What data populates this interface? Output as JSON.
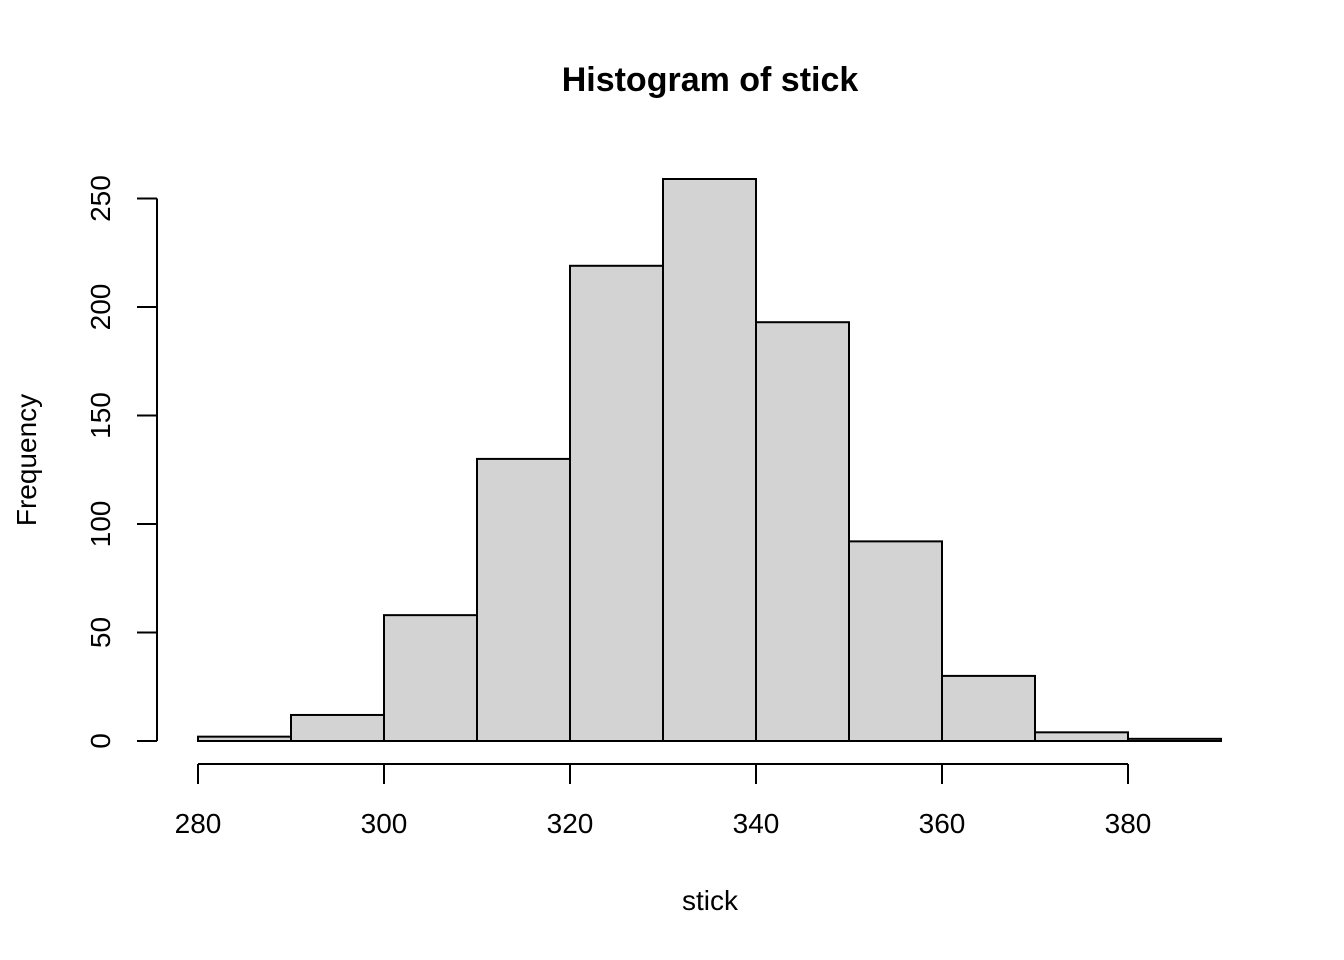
{
  "chart_data": {
    "type": "bar",
    "title": "Histogram of stick",
    "xlabel": "stick",
    "ylabel": "Frequency",
    "bins": [
      {
        "start": 280,
        "end": 290,
        "count": 2
      },
      {
        "start": 290,
        "end": 300,
        "count": 12
      },
      {
        "start": 300,
        "end": 310,
        "count": 58
      },
      {
        "start": 310,
        "end": 320,
        "count": 130
      },
      {
        "start": 320,
        "end": 330,
        "count": 219
      },
      {
        "start": 330,
        "end": 340,
        "count": 259
      },
      {
        "start": 340,
        "end": 350,
        "count": 193
      },
      {
        "start": 350,
        "end": 360,
        "count": 92
      },
      {
        "start": 360,
        "end": 370,
        "count": 30
      },
      {
        "start": 370,
        "end": 380,
        "count": 4
      },
      {
        "start": 380,
        "end": 390,
        "count": 1
      }
    ],
    "xticks": [
      280,
      300,
      320,
      340,
      360,
      380
    ],
    "yticks": [
      0,
      50,
      100,
      150,
      200,
      250
    ],
    "xlim": [
      280,
      390
    ],
    "ylim": [
      0,
      259
    ],
    "bar_color": "#d3d3d3",
    "border_color": "#000000",
    "grid": false
  }
}
